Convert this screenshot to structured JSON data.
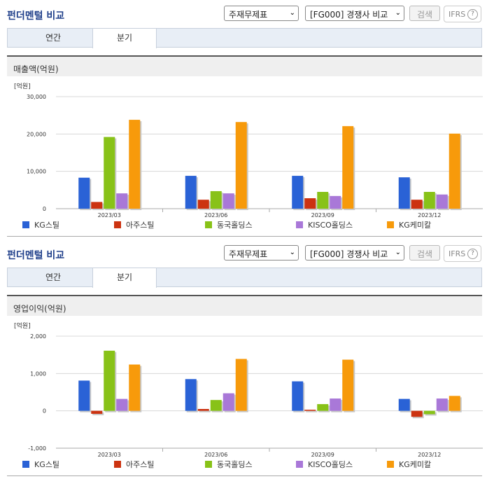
{
  "sections": [
    {
      "title": "펀더멘털 비교",
      "dropdown1": "주재무제표",
      "dropdown2": "[FG000] 경쟁사 비교",
      "search_label": "검색",
      "ifrs_label": "IFRS",
      "help_label": "?",
      "tabs": [
        "연간",
        "분기"
      ],
      "active_tab": "분기",
      "header": "매출액(억원)"
    },
    {
      "title": "펀더멘털 비교",
      "dropdown1": "주재무제표",
      "dropdown2": "[FG000] 경쟁사 비교",
      "search_label": "검색",
      "ifrs_label": "IFRS",
      "help_label": "?",
      "tabs": [
        "연간",
        "분기"
      ],
      "active_tab": "분기",
      "header": "영업이익(억원)"
    }
  ],
  "chart_data": [
    {
      "type": "bar",
      "unit_label": "[억원]",
      "categories": [
        "2023/03",
        "2023/06",
        "2023/09",
        "2023/12"
      ],
      "ylim": [
        0,
        30000
      ],
      "yticks": [
        "0",
        "10,000",
        "20,000",
        "30,000"
      ],
      "ytick_values": [
        0,
        10000,
        20000,
        30000
      ],
      "grid": true,
      "legend_position": "bottom",
      "series": [
        {
          "name": "KG스틸",
          "color": "#2a62d6",
          "values": [
            8300,
            8800,
            8800,
            8400
          ]
        },
        {
          "name": "아주스틸",
          "color": "#cc3311",
          "values": [
            1800,
            2400,
            2800,
            2400
          ]
        },
        {
          "name": "동국홀딩스",
          "color": "#88c218",
          "values": [
            19200,
            4700,
            4500,
            4500
          ]
        },
        {
          "name": "KISCO홀딩스",
          "color": "#a978d8",
          "values": [
            4100,
            4100,
            3400,
            3800
          ]
        },
        {
          "name": "KG케미칼",
          "color": "#f79a0b",
          "values": [
            23800,
            23200,
            22100,
            20100
          ]
        }
      ]
    },
    {
      "type": "bar",
      "unit_label": "[억원]",
      "categories": [
        "2023/03",
        "2023/06",
        "2023/09",
        "2023/12"
      ],
      "ylim": [
        -1000,
        2000
      ],
      "yticks": [
        "-1,000",
        "0",
        "1,000",
        "2,000"
      ],
      "ytick_values": [
        -1000,
        0,
        1000,
        2000
      ],
      "grid": true,
      "legend_position": "bottom",
      "series": [
        {
          "name": "KG스틸",
          "color": "#2a62d6",
          "values": [
            810,
            850,
            790,
            320
          ]
        },
        {
          "name": "아주스틸",
          "color": "#cc3311",
          "values": [
            -80,
            50,
            30,
            -160
          ]
        },
        {
          "name": "동국홀딩스",
          "color": "#88c218",
          "values": [
            1610,
            290,
            180,
            -90
          ]
        },
        {
          "name": "KISCO홀딩스",
          "color": "#a978d8",
          "values": [
            320,
            470,
            330,
            330
          ]
        },
        {
          "name": "KG케미칼",
          "color": "#f79a0b",
          "values": [
            1240,
            1390,
            1370,
            400
          ]
        }
      ]
    }
  ]
}
